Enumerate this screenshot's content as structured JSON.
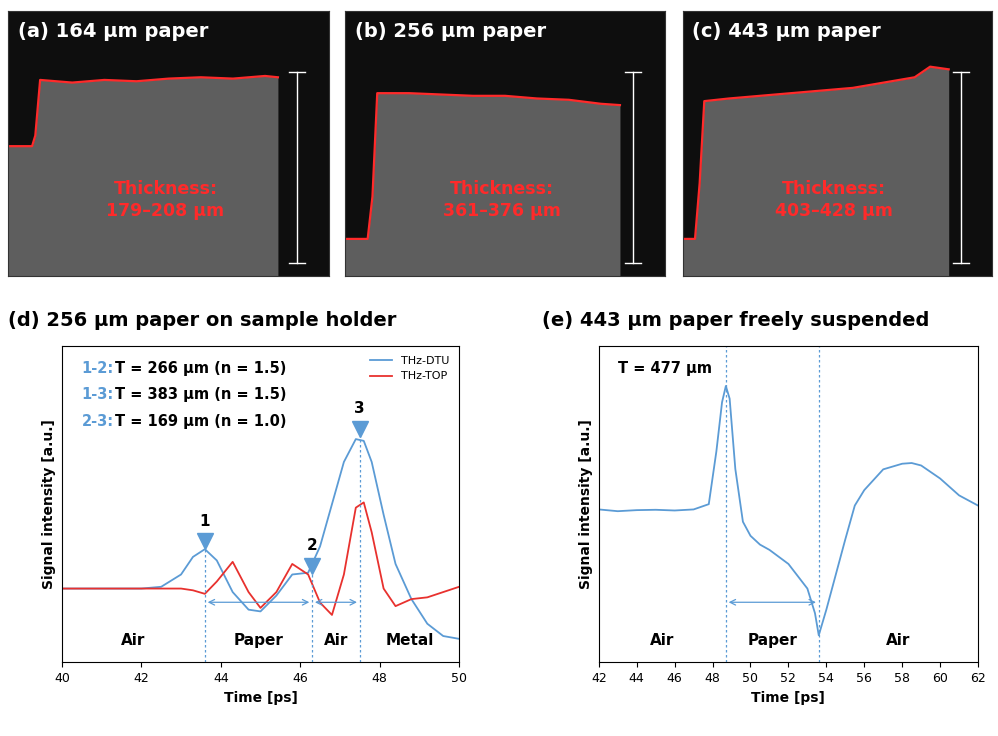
{
  "chart_data": [
    {
      "type": "line",
      "title": "(a) 164 μm paper",
      "annotations": [
        "Thickness:",
        "179–208 μm"
      ],
      "tick_labels": false,
      "xlim": [
        0,
        100
      ],
      "ylim": [
        0,
        100
      ],
      "x": [
        0,
        7.5,
        8.5,
        10,
        20,
        30,
        40,
        50,
        60,
        70,
        80,
        84
      ],
      "values": [
        49,
        49,
        53,
        74,
        73,
        74,
        73.5,
        74.5,
        75,
        74.5,
        75.5,
        75
      ],
      "color": "#ff2a2a"
    },
    {
      "type": "line",
      "title": "(b) 256 μm paper",
      "annotations": [
        "Thickness:",
        "361–376 μm"
      ],
      "tick_labels": false,
      "xlim": [
        0,
        100
      ],
      "ylim": [
        0,
        100
      ],
      "x": [
        0,
        7,
        8.5,
        10,
        20,
        30,
        40,
        50,
        60,
        70,
        80,
        86
      ],
      "values": [
        14,
        14,
        30,
        69,
        69,
        68.5,
        68,
        68,
        67,
        66.5,
        65,
        64.5
      ],
      "color": "#ff2a2a"
    },
    {
      "type": "line",
      "title": "(c) 443 μm paper",
      "annotations": [
        "Thickness:",
        "403–428 μm"
      ],
      "tick_labels": false,
      "xlim": [
        0,
        100
      ],
      "ylim": [
        0,
        100
      ],
      "x": [
        0,
        4,
        5.5,
        7,
        15,
        25,
        35,
        45,
        55,
        65,
        75,
        80,
        86
      ],
      "values": [
        14,
        14,
        35,
        66,
        67,
        68,
        69,
        70,
        71,
        73,
        75,
        79,
        78
      ],
      "color": "#ff2a2a"
    },
    {
      "type": "line",
      "title": "(d) 256 μm paper on sample holder",
      "x_label": "Time [ps]",
      "y_label": "Signal intensity [a.u.]",
      "tick_labels": "x",
      "xlim": [
        40,
        50
      ],
      "xticks": [
        40,
        42,
        44,
        46,
        48,
        50
      ],
      "ylim": [
        0,
        90
      ],
      "legend": "upper right",
      "x": [
        40,
        41,
        42,
        42.5,
        43,
        43.3,
        43.6,
        43.9,
        44.3,
        44.7,
        45,
        45.4,
        45.8,
        46.2,
        46.5,
        46.8,
        47.1,
        47.4,
        47.6,
        47.8,
        48.1,
        48.4,
        48.8,
        49.2,
        49.6,
        50
      ],
      "series": [
        {
          "name": "THz-DTU",
          "color": "#5b9bd5",
          "values": [
            21,
            21,
            21,
            21.5,
            25,
            30,
            32.2,
            29,
            20,
            15,
            14.5,
            19,
            25,
            25.5,
            33,
            45,
            57,
            63.5,
            63,
            57,
            42,
            28,
            18,
            11,
            7.5,
            6.7
          ]
        },
        {
          "name": "THz-TOP",
          "color": "#e8312e",
          "values": [
            21,
            21,
            21,
            21,
            21,
            20.5,
            19.5,
            23,
            28.6,
            20,
            15.5,
            20,
            28,
            25,
            17,
            13.5,
            25,
            44,
            45.5,
            37,
            21,
            16,
            18,
            18.5,
            20,
            21.5
          ]
        }
      ],
      "markers": [
        {
          "label": "1",
          "x": 43.6,
          "y": 34.5
        },
        {
          "label": "2",
          "x": 46.3,
          "y": 27.5
        },
        {
          "label": "3",
          "x": 47.5,
          "y": 66.5
        }
      ],
      "boundaries": [
        43.6,
        46.3,
        47.5
      ],
      "regions": [
        "Air",
        "Paper",
        "Air",
        "Metal"
      ],
      "annotations": [
        {
          "label": "1-2:",
          "text": "T = 266 μm (n = 1.5)"
        },
        {
          "label": "1-3:",
          "text": "T = 383 μm (n = 1.5)"
        },
        {
          "label": "2-3:",
          "text": "T = 169 μm (n = 1.0)"
        }
      ]
    },
    {
      "type": "line",
      "title": "(e) 443 μm paper freely suspended",
      "x_label": "Time [ps]",
      "y_label": "Signal intensity [a.u.]",
      "tick_labels": "x",
      "xlim": [
        42,
        62
      ],
      "xticks": [
        42,
        44,
        46,
        48,
        50,
        52,
        54,
        56,
        58,
        60,
        62
      ],
      "ylim": [
        0,
        90
      ],
      "x": [
        42,
        43,
        44,
        45,
        46,
        47,
        47.8,
        48.2,
        48.5,
        48.7,
        48.9,
        49.2,
        49.6,
        50,
        50.5,
        51,
        52,
        53,
        53.4,
        53.6,
        54,
        54.5,
        55,
        55.5,
        56,
        57,
        58,
        58.5,
        59,
        60,
        61,
        62
      ],
      "series": [
        {
          "name": "THz-DTU",
          "color": "#5b9bd5",
          "values": [
            43.5,
            43,
            43.3,
            43.4,
            43.2,
            43.5,
            45,
            60,
            74,
            78.6,
            75,
            55,
            40,
            36,
            33.5,
            32,
            28,
            21,
            14,
            7.7,
            15,
            25,
            35,
            44.6,
            49,
            54.9,
            56.5,
            56.7,
            56,
            52.3,
            47.5,
            44.6
          ]
        }
      ],
      "boundaries": [
        48.7,
        53.6
      ],
      "regions": [
        "Air",
        "Paper",
        "Air"
      ],
      "annotations": [
        {
          "label": "",
          "text": "T = 477 μm"
        }
      ]
    }
  ]
}
